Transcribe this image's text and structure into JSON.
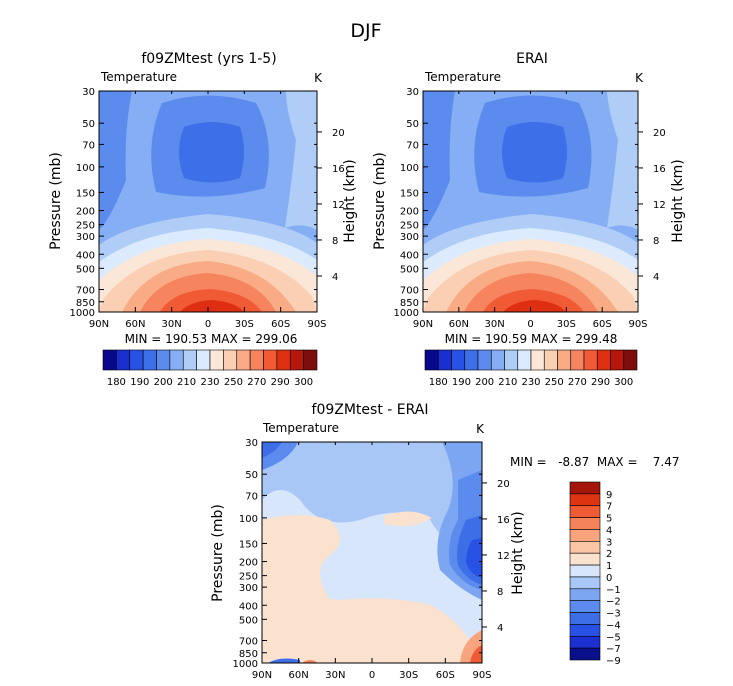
{
  "figure_title": "DJF",
  "colors": {
    "abs_scale": [
      "#08088c",
      "#1a2fd0",
      "#2851e6",
      "#3d6fe8",
      "#5c8bee",
      "#86aef5",
      "#b0cdf7",
      "#dbeafc",
      "#fbe7d8",
      "#fbcfb4",
      "#f9ab86",
      "#f6845e",
      "#f05a34",
      "#df2f12",
      "#b6170a",
      "#7d0e0b"
    ],
    "diff_scale": [
      "#0a0f8c",
      "#1c2fd1",
      "#2852e6",
      "#3d6ee8",
      "#5c8bee",
      "#7da6f2",
      "#a8c6f6",
      "#d8e6fb",
      "#fbe2cf",
      "#fbc6a6",
      "#f8a47f",
      "#f4825b",
      "#ee5b34",
      "#dd3412",
      "#a4150a"
    ]
  },
  "chart_data": [
    {
      "type": "heatmap",
      "title": "f09ZMtest (yrs 1-5)",
      "left_label": "Temperature",
      "right_label": "K",
      "ylabel": "Pressure (mb)",
      "y2label": "Height (km)",
      "x_ticks": [
        "90N",
        "60N",
        "30N",
        "0",
        "30S",
        "60S",
        "90S"
      ],
      "y_ticks": [
        "30",
        "50",
        "70",
        "100",
        "150",
        "200",
        "250",
        "300",
        "400",
        "500",
        "700",
        "850",
        "1000"
      ],
      "height_ticks": [
        "20",
        "16",
        "12",
        "8",
        "4"
      ],
      "minmax": "MIN = 190.53  MAX = 299.06",
      "colorbar_labels": [
        "180",
        "190",
        "200",
        "210",
        "230",
        "250",
        "270",
        "290",
        "300"
      ],
      "ylog": true
    },
    {
      "type": "heatmap",
      "title": "ERAI",
      "left_label": "Temperature",
      "right_label": "K",
      "ylabel": "Pressure (mb)",
      "y2label": "Height (km)",
      "x_ticks": [
        "90N",
        "60N",
        "30N",
        "0",
        "30S",
        "60S",
        "90S"
      ],
      "y_ticks": [
        "30",
        "50",
        "70",
        "100",
        "150",
        "200",
        "250",
        "300",
        "400",
        "500",
        "700",
        "850",
        "1000"
      ],
      "height_ticks": [
        "20",
        "16",
        "12",
        "8",
        "4"
      ],
      "minmax": "MIN = 190.59  MAX = 299.48",
      "colorbar_labels": [
        "180",
        "190",
        "200",
        "210",
        "230",
        "250",
        "270",
        "290",
        "300"
      ],
      "ylog": true
    },
    {
      "type": "heatmap",
      "title": "f09ZMtest - ERAI",
      "left_label": "Temperature",
      "right_label": "K",
      "ylabel": "Pressure (mb)",
      "y2label": "Height (km)",
      "x_ticks": [
        "90N",
        "60N",
        "30N",
        "0",
        "30S",
        "60S",
        "90S"
      ],
      "y_ticks": [
        "30",
        "50",
        "70",
        "100",
        "150",
        "200",
        "250",
        "300",
        "400",
        "500",
        "700",
        "850",
        "1000"
      ],
      "height_ticks": [
        "20",
        "16",
        "12",
        "8",
        "4"
      ],
      "minmax": "MIN =   -8.87  MAX =    7.47",
      "colorbar_labels": [
        "9",
        "7",
        "5",
        "4",
        "3",
        "2",
        "1",
        "0",
        "−1",
        "−2",
        "−3",
        "−4",
        "−5",
        "−7",
        "−9"
      ],
      "ylog": true
    }
  ]
}
